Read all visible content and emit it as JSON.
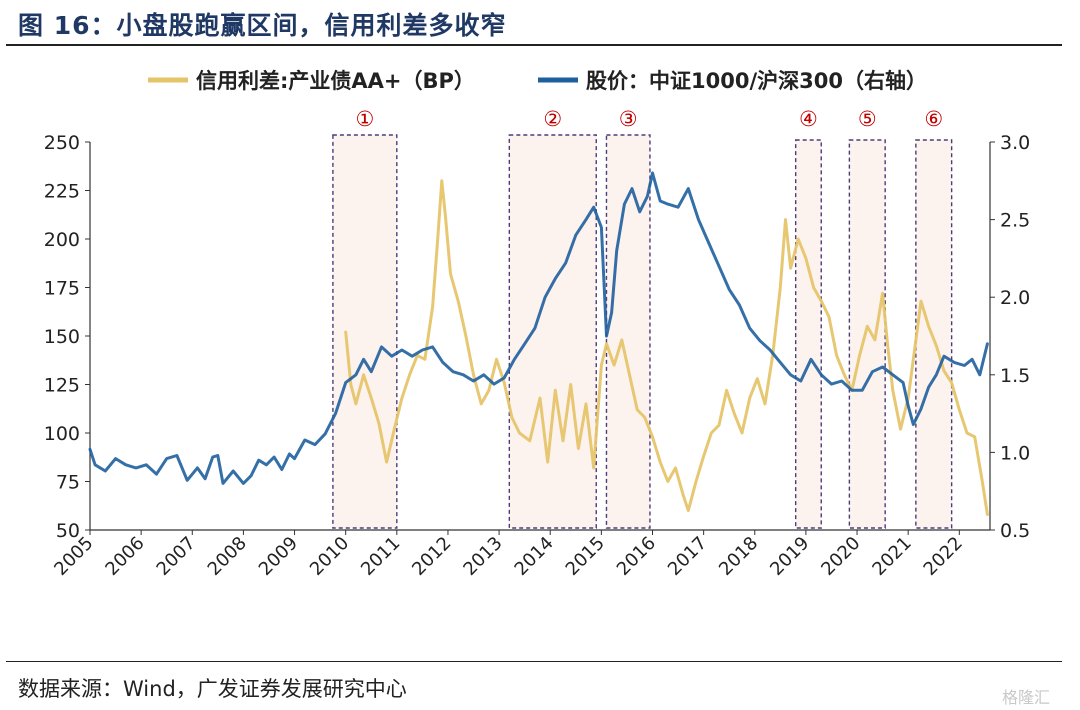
{
  "figure": {
    "title": "图 16：小盘股跑赢区间，信用利差多收窄",
    "source": "数据来源：Wind，广发证券发展研究中心",
    "watermark": "格隆汇"
  },
  "chart_data": {
    "type": "line",
    "x_ticks": [
      "2005",
      "2006",
      "2007",
      "2008",
      "2009",
      "2010",
      "2011",
      "2012",
      "2013",
      "2014",
      "2015",
      "2016",
      "2017",
      "2018",
      "2019",
      "2020",
      "2021",
      "2022"
    ],
    "x_range": [
      2005.0,
      2022.6
    ],
    "left_axis": {
      "ticks": [
        "50",
        "75",
        "100",
        "125",
        "150",
        "175",
        "200",
        "225",
        "250"
      ],
      "range": [
        50,
        250
      ]
    },
    "right_axis": {
      "ticks": [
        "0.5",
        "1.0",
        "1.5",
        "2.0",
        "2.5",
        "3.0"
      ],
      "range": [
        0.5,
        3.0
      ]
    },
    "grid": false,
    "legend_position": "top",
    "legend_symbol": "—",
    "series": [
      {
        "name": "信用利差:产业债AA+（BP）",
        "axis": "left",
        "color": "#e6c46a",
        "points": [
          [
            2010.0,
            152
          ],
          [
            2010.1,
            125
          ],
          [
            2010.2,
            115
          ],
          [
            2010.35,
            130
          ],
          [
            2010.5,
            118
          ],
          [
            2010.65,
            105
          ],
          [
            2010.8,
            85
          ],
          [
            2010.95,
            102
          ],
          [
            2011.1,
            118
          ],
          [
            2011.25,
            130
          ],
          [
            2011.4,
            140
          ],
          [
            2011.55,
            138
          ],
          [
            2011.7,
            165
          ],
          [
            2011.8,
            200
          ],
          [
            2011.88,
            230
          ],
          [
            2011.95,
            212
          ],
          [
            2012.05,
            182
          ],
          [
            2012.2,
            168
          ],
          [
            2012.35,
            150
          ],
          [
            2012.5,
            130
          ],
          [
            2012.65,
            115
          ],
          [
            2012.8,
            122
          ],
          [
            2012.95,
            138
          ],
          [
            2013.1,
            126
          ],
          [
            2013.25,
            108
          ],
          [
            2013.4,
            100
          ],
          [
            2013.6,
            96
          ],
          [
            2013.8,
            118
          ],
          [
            2013.95,
            85
          ],
          [
            2014.1,
            122
          ],
          [
            2014.25,
            96
          ],
          [
            2014.4,
            125
          ],
          [
            2014.55,
            92
          ],
          [
            2014.7,
            115
          ],
          [
            2014.85,
            82
          ],
          [
            2015.0,
            135
          ],
          [
            2015.1,
            146
          ],
          [
            2015.25,
            135
          ],
          [
            2015.4,
            148
          ],
          [
            2015.55,
            130
          ],
          [
            2015.7,
            112
          ],
          [
            2015.85,
            108
          ],
          [
            2016.0,
            98
          ],
          [
            2016.15,
            85
          ],
          [
            2016.3,
            75
          ],
          [
            2016.45,
            82
          ],
          [
            2016.6,
            68
          ],
          [
            2016.7,
            60
          ],
          [
            2016.85,
            75
          ],
          [
            2017.0,
            88
          ],
          [
            2017.15,
            100
          ],
          [
            2017.3,
            104
          ],
          [
            2017.45,
            122
          ],
          [
            2017.6,
            110
          ],
          [
            2017.75,
            100
          ],
          [
            2017.9,
            118
          ],
          [
            2018.05,
            128
          ],
          [
            2018.2,
            115
          ],
          [
            2018.35,
            140
          ],
          [
            2018.5,
            175
          ],
          [
            2018.6,
            210
          ],
          [
            2018.7,
            185
          ],
          [
            2018.85,
            200
          ],
          [
            2019.0,
            190
          ],
          [
            2019.15,
            175
          ],
          [
            2019.3,
            168
          ],
          [
            2019.45,
            160
          ],
          [
            2019.6,
            140
          ],
          [
            2019.75,
            130
          ],
          [
            2019.9,
            122
          ],
          [
            2020.05,
            140
          ],
          [
            2020.2,
            155
          ],
          [
            2020.35,
            148
          ],
          [
            2020.5,
            172
          ],
          [
            2020.6,
            145
          ],
          [
            2020.7,
            122
          ],
          [
            2020.85,
            102
          ],
          [
            2021.0,
            118
          ],
          [
            2021.15,
            148
          ],
          [
            2021.25,
            168
          ],
          [
            2021.4,
            155
          ],
          [
            2021.55,
            145
          ],
          [
            2021.7,
            132
          ],
          [
            2021.85,
            126
          ],
          [
            2022.0,
            112
          ],
          [
            2022.15,
            100
          ],
          [
            2022.3,
            98
          ],
          [
            2022.45,
            75
          ],
          [
            2022.55,
            58
          ]
        ]
      },
      {
        "name": "股价：中证1000/沪深300（右轴）",
        "axis": "right",
        "color": "#1f5f9e",
        "points": [
          [
            2005.0,
            1.02
          ],
          [
            2005.1,
            0.92
          ],
          [
            2005.3,
            0.88
          ],
          [
            2005.5,
            0.96
          ],
          [
            2005.7,
            0.92
          ],
          [
            2005.9,
            0.9
          ],
          [
            2006.1,
            0.92
          ],
          [
            2006.3,
            0.86
          ],
          [
            2006.5,
            0.96
          ],
          [
            2006.7,
            0.98
          ],
          [
            2006.9,
            0.82
          ],
          [
            2007.1,
            0.9
          ],
          [
            2007.25,
            0.83
          ],
          [
            2007.4,
            0.97
          ],
          [
            2007.5,
            0.98
          ],
          [
            2007.6,
            0.8
          ],
          [
            2007.8,
            0.88
          ],
          [
            2008.0,
            0.8
          ],
          [
            2008.15,
            0.85
          ],
          [
            2008.3,
            0.95
          ],
          [
            2008.45,
            0.92
          ],
          [
            2008.6,
            0.97
          ],
          [
            2008.75,
            0.89
          ],
          [
            2008.9,
            0.99
          ],
          [
            2009.0,
            0.96
          ],
          [
            2009.2,
            1.08
          ],
          [
            2009.4,
            1.05
          ],
          [
            2009.6,
            1.12
          ],
          [
            2009.8,
            1.25
          ],
          [
            2010.0,
            1.45
          ],
          [
            2010.2,
            1.5
          ],
          [
            2010.35,
            1.6
          ],
          [
            2010.5,
            1.52
          ],
          [
            2010.7,
            1.68
          ],
          [
            2010.9,
            1.62
          ],
          [
            2011.1,
            1.66
          ],
          [
            2011.3,
            1.62
          ],
          [
            2011.5,
            1.66
          ],
          [
            2011.7,
            1.68
          ],
          [
            2011.9,
            1.58
          ],
          [
            2012.1,
            1.52
          ],
          [
            2012.3,
            1.5
          ],
          [
            2012.5,
            1.46
          ],
          [
            2012.7,
            1.5
          ],
          [
            2012.9,
            1.44
          ],
          [
            2013.1,
            1.48
          ],
          [
            2013.3,
            1.6
          ],
          [
            2013.5,
            1.7
          ],
          [
            2013.7,
            1.8
          ],
          [
            2013.9,
            2.0
          ],
          [
            2014.1,
            2.12
          ],
          [
            2014.3,
            2.22
          ],
          [
            2014.5,
            2.4
          ],
          [
            2014.7,
            2.5
          ],
          [
            2014.85,
            2.58
          ],
          [
            2015.0,
            2.45
          ],
          [
            2015.1,
            1.75
          ],
          [
            2015.2,
            1.9
          ],
          [
            2015.3,
            2.3
          ],
          [
            2015.45,
            2.6
          ],
          [
            2015.6,
            2.7
          ],
          [
            2015.75,
            2.55
          ],
          [
            2015.9,
            2.65
          ],
          [
            2016.0,
            2.8
          ],
          [
            2016.15,
            2.62
          ],
          [
            2016.3,
            2.6
          ],
          [
            2016.5,
            2.58
          ],
          [
            2016.7,
            2.7
          ],
          [
            2016.9,
            2.5
          ],
          [
            2017.1,
            2.35
          ],
          [
            2017.3,
            2.2
          ],
          [
            2017.5,
            2.05
          ],
          [
            2017.7,
            1.95
          ],
          [
            2017.9,
            1.8
          ],
          [
            2018.1,
            1.72
          ],
          [
            2018.3,
            1.66
          ],
          [
            2018.5,
            1.58
          ],
          [
            2018.7,
            1.5
          ],
          [
            2018.9,
            1.46
          ],
          [
            2019.1,
            1.6
          ],
          [
            2019.3,
            1.5
          ],
          [
            2019.5,
            1.44
          ],
          [
            2019.7,
            1.46
          ],
          [
            2019.9,
            1.4
          ],
          [
            2020.1,
            1.4
          ],
          [
            2020.3,
            1.52
          ],
          [
            2020.5,
            1.55
          ],
          [
            2020.7,
            1.5
          ],
          [
            2020.9,
            1.45
          ],
          [
            2021.0,
            1.3
          ],
          [
            2021.1,
            1.18
          ],
          [
            2021.25,
            1.28
          ],
          [
            2021.4,
            1.42
          ],
          [
            2021.55,
            1.5
          ],
          [
            2021.7,
            1.62
          ],
          [
            2021.9,
            1.58
          ],
          [
            2022.1,
            1.56
          ],
          [
            2022.25,
            1.6
          ],
          [
            2022.4,
            1.5
          ],
          [
            2022.55,
            1.7
          ]
        ]
      }
    ],
    "highlight_periods": [
      {
        "label": "①",
        "start": 2009.75,
        "end": 2011.0,
        "full_height": true
      },
      {
        "label": "②",
        "start": 2013.2,
        "end": 2014.9,
        "full_height": true
      },
      {
        "label": "③",
        "start": 2015.1,
        "end": 2015.95,
        "full_height": true
      },
      {
        "label": "④",
        "start": 2018.8,
        "end": 2019.3,
        "full_height": false
      },
      {
        "label": "⑤",
        "start": 2019.85,
        "end": 2020.55,
        "full_height": false
      },
      {
        "label": "⑥",
        "start": 2021.15,
        "end": 2021.85,
        "full_height": false
      }
    ]
  }
}
